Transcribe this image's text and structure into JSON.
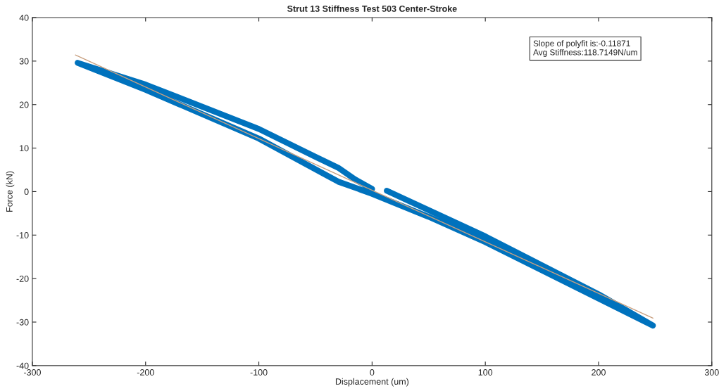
{
  "chart_data": {
    "type": "line",
    "title": "Strut 13 Stiffness Test 503 Center-Stroke",
    "xlabel": "Displacement (um)",
    "ylabel": "Force (kN)",
    "xlim": [
      -300,
      300
    ],
    "xticks": [
      -300,
      -200,
      -100,
      0,
      100,
      200,
      300
    ],
    "ylim": [
      -40,
      40
    ],
    "yticks": [
      -40,
      -30,
      -20,
      -10,
      0,
      10,
      20,
      30,
      40
    ],
    "grid": false,
    "legend": false,
    "series": [
      {
        "color": "#0072bd",
        "x": [
          13,
          100,
          200,
          248,
          200,
          100,
          50,
          0,
          -30,
          -100,
          -200,
          -260,
          -200,
          -100,
          -50,
          -30,
          -15,
          0
        ],
        "values": [
          0.2,
          -10.3,
          -23.6,
          -30.8,
          -24.6,
          -11.6,
          -5.8,
          -0.5,
          2.3,
          12.2,
          23.4,
          29.6,
          24.6,
          14.4,
          8,
          5.5,
          2.8,
          0.6
        ]
      },
      {
        "color": "#c8a080",
        "x": [
          -262,
          248
        ],
        "values": [
          31.4,
          -29.1
        ]
      }
    ],
    "annotations": [
      "Slope of polyfit is:-0.11871",
      "Avg Stiffness:118.7149N/um"
    ]
  }
}
